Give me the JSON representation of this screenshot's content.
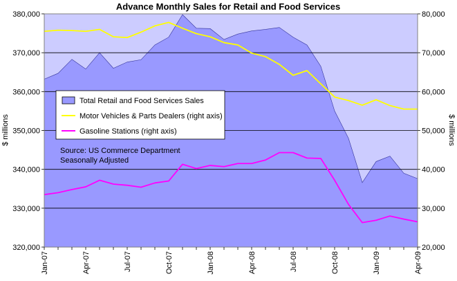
{
  "chart_data": {
    "type": "area",
    "title": "Advance Monthly Sales for Retail and Food Services",
    "ylabel_left": "$ millions",
    "ylabel_right": "$ millions",
    "ylim_left": [
      320000,
      380000
    ],
    "ylim_right": [
      20000,
      80000
    ],
    "yticks_left": [
      "320,000",
      "330,000",
      "340,000",
      "350,000",
      "360,000",
      "370,000",
      "380,000"
    ],
    "yticks_right": [
      "20,000",
      "30,000",
      "40,000",
      "50,000",
      "60,000",
      "70,000",
      "80,000"
    ],
    "x": [
      "Jan-07",
      "Feb-07",
      "Mar-07",
      "Apr-07",
      "May-07",
      "Jun-07",
      "Jul-07",
      "Aug-07",
      "Sep-07",
      "Oct-07",
      "Nov-07",
      "Dec-07",
      "Jan-08",
      "Feb-08",
      "Mar-08",
      "Apr-08",
      "May-08",
      "Jun-08",
      "Jul-08",
      "Aug-08",
      "Sep-08",
      "Oct-08",
      "Nov-08",
      "Dec-08",
      "Jan-09",
      "Feb-09",
      "Mar-09",
      "Apr-09"
    ],
    "xtick_labels": [
      "Jan-07",
      "Apr-07",
      "Jul-07",
      "Oct-07",
      "Jan-08",
      "Apr-08",
      "Jul-08",
      "Oct-08",
      "Jan-09",
      "Apr-09"
    ],
    "grid": "horizontal",
    "legend_position": "left-middle",
    "annotation": [
      "Source: US Commerce Department",
      "Seasonally Adjusted"
    ],
    "series": [
      {
        "name": "Total Retail and Food Services Sales",
        "axis": "left",
        "style": "area",
        "color": "#9999ff",
        "values": [
          363200,
          364700,
          368300,
          365800,
          370000,
          366000,
          367600,
          368200,
          372000,
          374000,
          379800,
          376300,
          376200,
          373400,
          374800,
          375600,
          376000,
          376500,
          374000,
          372000,
          366500,
          355000,
          348000,
          336600,
          342000,
          343400,
          339000,
          337600
        ]
      },
      {
        "name": "Motor Vehicles & Parts Dealers (right axis)",
        "axis": "right",
        "style": "line",
        "color": "#ffff00",
        "values": [
          75500,
          75800,
          75700,
          75500,
          76000,
          74100,
          73900,
          75300,
          76900,
          77800,
          76300,
          74900,
          74100,
          72600,
          72000,
          69900,
          69000,
          67000,
          64200,
          65400,
          62000,
          58600,
          57700,
          56500,
          57900,
          56400,
          55500,
          55500
        ]
      },
      {
        "name": "Gasoline Stations (right axis)",
        "axis": "right",
        "style": "line",
        "color": "#ff00ff",
        "values": [
          33500,
          34000,
          34800,
          35500,
          37200,
          36200,
          35900,
          35400,
          36500,
          37000,
          41300,
          40200,
          41000,
          40700,
          41500,
          41500,
          42400,
          44300,
          44300,
          42900,
          42800,
          37200,
          31000,
          26300,
          26900,
          28000,
          27200,
          26500
        ]
      }
    ],
    "colors": {
      "plot_background": "#ccccff",
      "grid": "#000000",
      "frame": "#808080"
    }
  }
}
